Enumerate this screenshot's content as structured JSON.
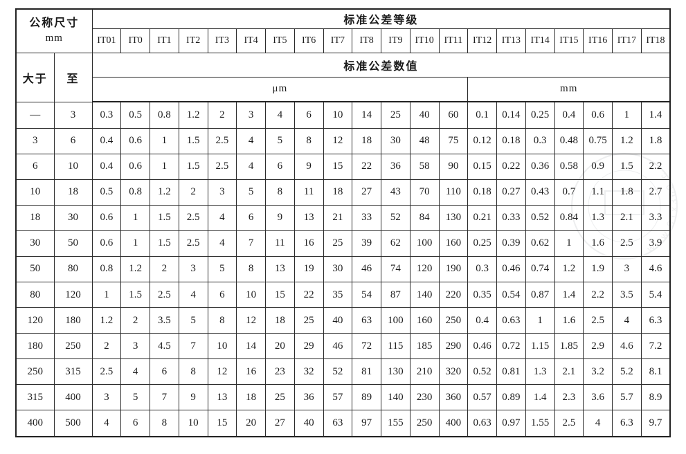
{
  "header": {
    "nominal_size_title": "公称尺寸",
    "nominal_size_unit": "mm",
    "grade_title": "标准公差等级",
    "value_title": "标准公差数值",
    "over_label": "大于",
    "upto_label": "至",
    "um_unit_label": "μm",
    "mm_unit_label": "mm",
    "grades": [
      "IT01",
      "IT0",
      "IT1",
      "IT2",
      "IT3",
      "IT4",
      "IT5",
      "IT6",
      "IT7",
      "IT8",
      "IT9",
      "IT10",
      "IT11",
      "IT12",
      "IT13",
      "IT14",
      "IT15",
      "IT16",
      "IT17",
      "IT18"
    ]
  },
  "rows": [
    {
      "over": "—",
      "upto": "3",
      "values": [
        "0.3",
        "0.5",
        "0.8",
        "1.2",
        "2",
        "3",
        "4",
        "6",
        "10",
        "14",
        "25",
        "40",
        "60",
        "0.1",
        "0.14",
        "0.25",
        "0.4",
        "0.6",
        "1",
        "1.4"
      ]
    },
    {
      "over": "3",
      "upto": "6",
      "values": [
        "0.4",
        "0.6",
        "1",
        "1.5",
        "2.5",
        "4",
        "5",
        "8",
        "12",
        "18",
        "30",
        "48",
        "75",
        "0.12",
        "0.18",
        "0.3",
        "0.48",
        "0.75",
        "1.2",
        "1.8"
      ]
    },
    {
      "over": "6",
      "upto": "10",
      "values": [
        "0.4",
        "0.6",
        "1",
        "1.5",
        "2.5",
        "4",
        "6",
        "9",
        "15",
        "22",
        "36",
        "58",
        "90",
        "0.15",
        "0.22",
        "0.36",
        "0.58",
        "0.9",
        "1.5",
        "2.2"
      ]
    },
    {
      "over": "10",
      "upto": "18",
      "values": [
        "0.5",
        "0.8",
        "1.2",
        "2",
        "3",
        "5",
        "8",
        "11",
        "18",
        "27",
        "43",
        "70",
        "110",
        "0.18",
        "0.27",
        "0.43",
        "0.7",
        "1.1",
        "1.8",
        "2.7"
      ]
    },
    {
      "over": "18",
      "upto": "30",
      "values": [
        "0.6",
        "1",
        "1.5",
        "2.5",
        "4",
        "6",
        "9",
        "13",
        "21",
        "33",
        "52",
        "84",
        "130",
        "0.21",
        "0.33",
        "0.52",
        "0.84",
        "1.3",
        "2.1",
        "3.3"
      ]
    },
    {
      "over": "30",
      "upto": "50",
      "values": [
        "0.6",
        "1",
        "1.5",
        "2.5",
        "4",
        "7",
        "11",
        "16",
        "25",
        "39",
        "62",
        "100",
        "160",
        "0.25",
        "0.39",
        "0.62",
        "1",
        "1.6",
        "2.5",
        "3.9"
      ]
    },
    {
      "over": "50",
      "upto": "80",
      "values": [
        "0.8",
        "1.2",
        "2",
        "3",
        "5",
        "8",
        "13",
        "19",
        "30",
        "46",
        "74",
        "120",
        "190",
        "0.3",
        "0.46",
        "0.74",
        "1.2",
        "1.9",
        "3",
        "4.6"
      ]
    },
    {
      "over": "80",
      "upto": "120",
      "values": [
        "1",
        "1.5",
        "2.5",
        "4",
        "6",
        "10",
        "15",
        "22",
        "35",
        "54",
        "87",
        "140",
        "220",
        "0.35",
        "0.54",
        "0.87",
        "1.4",
        "2.2",
        "3.5",
        "5.4"
      ]
    },
    {
      "over": "120",
      "upto": "180",
      "values": [
        "1.2",
        "2",
        "3.5",
        "5",
        "8",
        "12",
        "18",
        "25",
        "40",
        "63",
        "100",
        "160",
        "250",
        "0.4",
        "0.63",
        "1",
        "1.6",
        "2.5",
        "4",
        "6.3"
      ]
    },
    {
      "over": "180",
      "upto": "250",
      "values": [
        "2",
        "3",
        "4.5",
        "7",
        "10",
        "14",
        "20",
        "29",
        "46",
        "72",
        "115",
        "185",
        "290",
        "0.46",
        "0.72",
        "1.15",
        "1.85",
        "2.9",
        "4.6",
        "7.2"
      ]
    },
    {
      "over": "250",
      "upto": "315",
      "values": [
        "2.5",
        "4",
        "6",
        "8",
        "12",
        "16",
        "23",
        "32",
        "52",
        "81",
        "130",
        "210",
        "320",
        "0.52",
        "0.81",
        "1.3",
        "2.1",
        "3.2",
        "5.2",
        "8.1"
      ]
    },
    {
      "over": "315",
      "upto": "400",
      "values": [
        "3",
        "5",
        "7",
        "9",
        "13",
        "18",
        "25",
        "36",
        "57",
        "89",
        "140",
        "230",
        "360",
        "0.57",
        "0.89",
        "1.4",
        "2.3",
        "3.6",
        "5.7",
        "8.9"
      ]
    },
    {
      "over": "400",
      "upto": "500",
      "values": [
        "4",
        "6",
        "8",
        "10",
        "15",
        "20",
        "27",
        "40",
        "63",
        "97",
        "155",
        "250",
        "400",
        "0.63",
        "0.97",
        "1.55",
        "2.5",
        "4",
        "6.3",
        "9.7"
      ]
    }
  ],
  "watermark": {
    "text": "www.81x360.c"
  },
  "colors": {
    "border": "#222222",
    "text": "#1c1c1c",
    "background": "#ffffff",
    "watermark": "#7a8088"
  }
}
